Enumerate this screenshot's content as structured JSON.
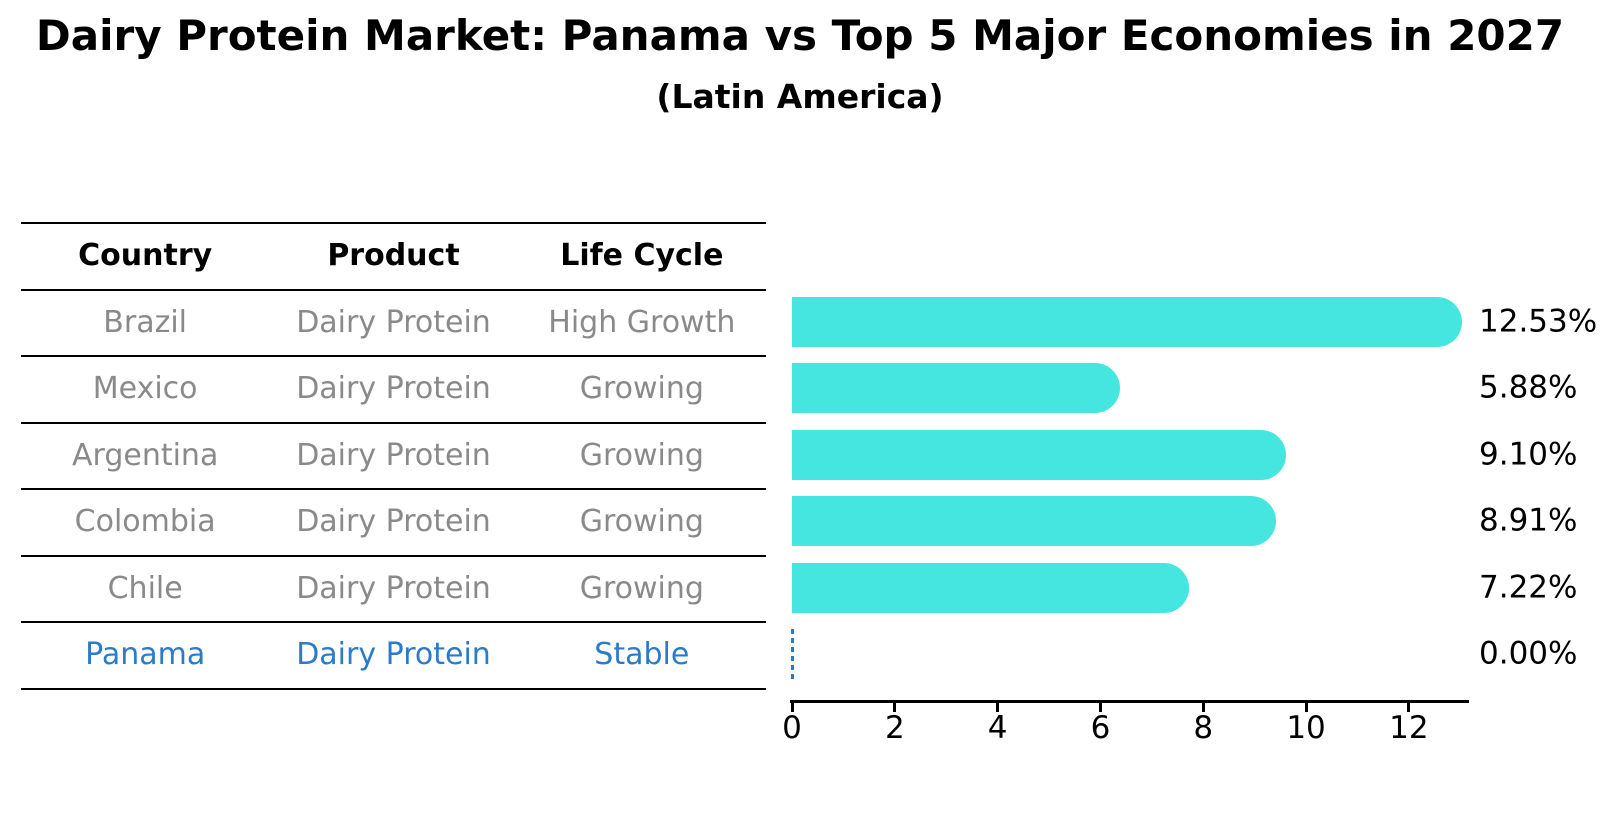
{
  "title": "Dairy Protein Market: Panama vs Top 5 Major Economies in 2027",
  "subtitle": "(Latin America)",
  "table": {
    "headers": [
      "Country",
      "Product",
      "Life Cycle"
    ],
    "rows": [
      {
        "country": "Brazil",
        "product": "Dairy Protein",
        "life_cycle": "High Growth",
        "highlight": false
      },
      {
        "country": "Mexico",
        "product": "Dairy Protein",
        "life_cycle": "Growing",
        "highlight": false
      },
      {
        "country": "Argentina",
        "product": "Dairy Protein",
        "life_cycle": "Growing",
        "highlight": false
      },
      {
        "country": "Colombia",
        "product": "Dairy Protein",
        "life_cycle": "Growing",
        "highlight": false
      },
      {
        "country": "Chile",
        "product": "Dairy Protein",
        "life_cycle": "Growing",
        "highlight": false
      },
      {
        "country": "Panama",
        "product": "Dairy Protein",
        "life_cycle": "Stable",
        "highlight": true
      }
    ]
  },
  "chart_data": {
    "type": "bar",
    "orientation": "horizontal",
    "title": "Dairy Protein Market: Panama vs Top 5 Major Economies in 2027",
    "subtitle": "(Latin America)",
    "categories": [
      "Brazil",
      "Mexico",
      "Argentina",
      "Colombia",
      "Chile",
      "Panama"
    ],
    "values": [
      12.53,
      5.88,
      9.1,
      8.91,
      7.22,
      0.0
    ],
    "value_labels": [
      "12.53%",
      "5.88%",
      "9.10%",
      "8.91%",
      "7.22%",
      "0.00%"
    ],
    "x_ticks": [
      "0",
      "2",
      "4",
      "6",
      "8",
      "10",
      "12"
    ],
    "x_tick_values": [
      0,
      2,
      4,
      6,
      8,
      10,
      12
    ],
    "xlim": [
      0,
      13.15
    ],
    "xlabel": "",
    "ylabel": "",
    "grid": false,
    "legend": "none",
    "zero_value_marker": "dashed-line"
  },
  "colors": {
    "bar": "#45e5e0",
    "highlight_blue": "#2c7bc9",
    "row_text": "#8a8a8a",
    "heading_text": "#000000",
    "axis": "#000000",
    "background": "#ffffff"
  }
}
